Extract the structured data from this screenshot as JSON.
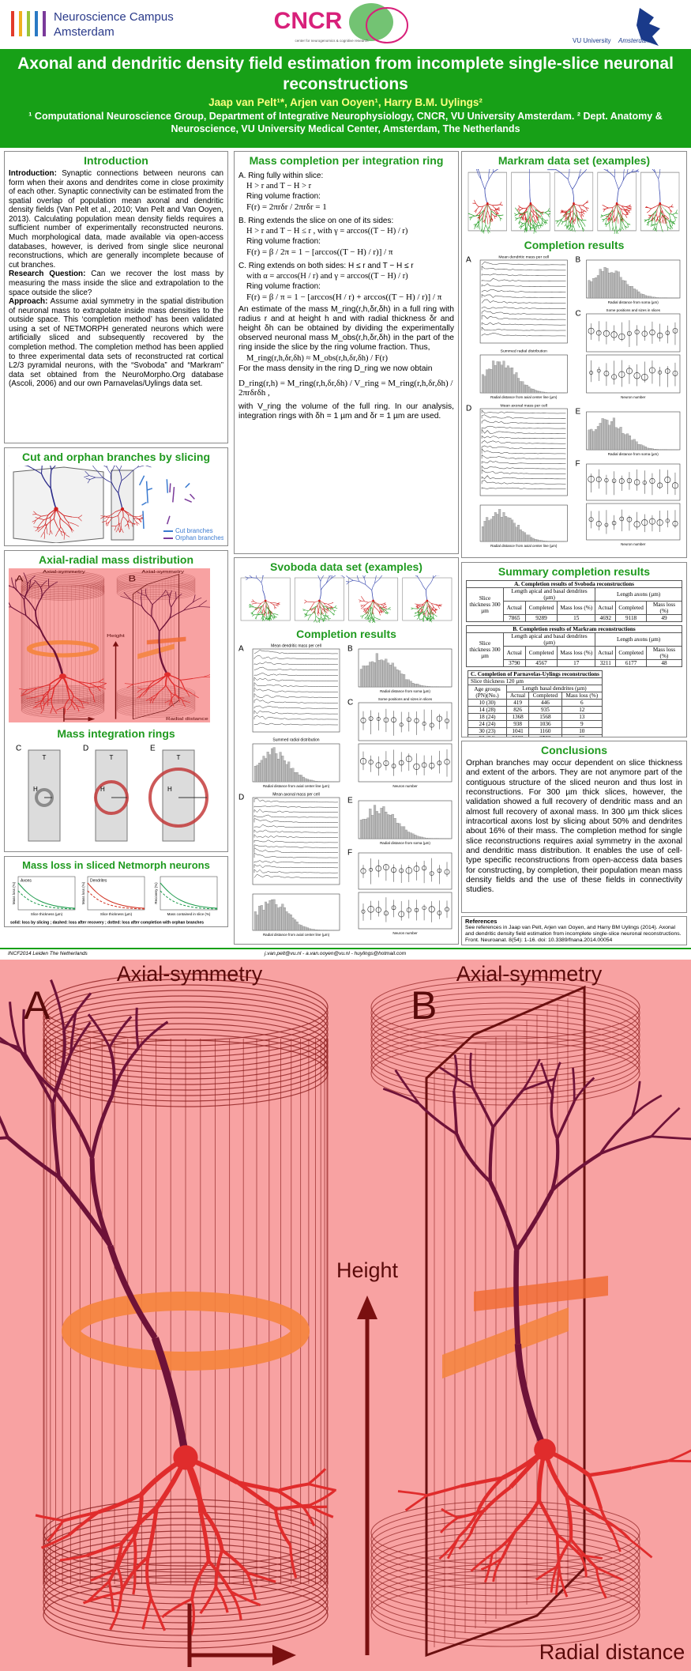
{
  "header": {
    "logo_left_line1": "Neuroscience Campus",
    "logo_left_line2": "Amsterdam",
    "logo_center": "CNCR",
    "logo_center_sub": "center for neurogenomics & cognitive research",
    "logo_right_1": "VU University",
    "logo_right_2": "Amsterdam"
  },
  "title": "Axonal and dendritic density field estimation from incomplete single-slice neuronal reconstructions",
  "authors": "Jaap van Pelt¹*, Arjen van Ooyen¹, Harry B.M. Uylings²",
  "affiliation": "¹ Computational Neuroscience Group, Department of Integrative Neurophysiology, CNCR, VU University Amsterdam. ² Dept. Anatomy & Neuroscience, VU University Medical Center, Amsterdam, The Netherlands",
  "introduction": {
    "title": "Introduction",
    "paragraphs": [
      {
        "lead": "Introduction:",
        "text": "Synaptic connections between neurons can form when their axons and dendrites come in close proximity of each other. Synaptic connectivity can be estimated from the spatial overlap of population mean axonal and dendritic density fields (Van Pelt et al., 2010; Van Pelt and Van Ooyen, 2013). Calculating population mean density fields requires a sufficient number of experimentally reconstructed neurons. Much morphological data, made available via open-access databases, however, is derived from single slice neuronal reconstructions, which are generally incomplete because of cut branches."
      },
      {
        "lead": "Research Question:",
        "text": "Can we recover the lost mass by measuring the mass inside the slice and extrapolation to the space outside the slice?"
      },
      {
        "lead": "Approach:",
        "text": "Assume axial symmetry in the spatial distribution of neuronal mass to extrapolate inside mass densities to the outside space. This ‘completion method’ has been validated using a set of NETMORPH generated neurons which were artificially sliced and subsequently recovered by the completion method. The completion method has been applied to three experimental data sets of reconstructed rat cortical L2/3 pyramidal neurons, with the “Svoboda” and “Markram” data set obtained from the NeuroMorpho.Org database (Ascoli, 2006) and our own Parnavelas/Uylings data set."
      }
    ]
  },
  "cut_orphan": {
    "title": "Cut and orphan branches by slicing",
    "legend": [
      "Cut branches",
      "Orphan branches"
    ]
  },
  "axial_radial": {
    "title": "Axial-radial mass distribution",
    "label_a": "A",
    "label_b": "B",
    "axial_symmetry": "Axial-symmetry",
    "height": "Height",
    "radial_distance": "Radial distance"
  },
  "rings": {
    "title": "Mass integration rings",
    "labels": [
      "C",
      "D",
      "E"
    ],
    "t": "T",
    "h": "H"
  },
  "mass_loss": {
    "title": "Mass loss in sliced Netmorph neurons",
    "panels": [
      "Axons",
      "Dendrites"
    ],
    "ylabel": "Mass loss (%)",
    "ylabel_recovery": "Recovery (%)",
    "xlabel": "Slice thickness (µm)",
    "xlabel_recovery": "Mass contained in slice (%)",
    "caption": "solid: loss by slicing ; dashed: loss after recovery ; dotted: loss after completion with orphan branches"
  },
  "mass_completion": {
    "title": "Mass completion per integration ring",
    "cases": [
      {
        "heading": "A. Ring fully within slice:",
        "condition": "H > r  and  T − H > r",
        "fraction_label": "Ring volume fraction:",
        "fraction": "F(r) = 2πrδr / 2πrδr = 1"
      },
      {
        "heading": "B. Ring extends the slice on one of its sides:",
        "condition": "H > r  and  T − H ≤ r , with  γ = arccos((T − H) / r)",
        "fraction_label": "Ring volume fraction:",
        "fraction": "F(r) = β / 2π = 1 − [arccos((T − H) / r)] / π"
      },
      {
        "heading": "C. Ring extends on both sides:  H ≤ r  and  T − H ≤ r",
        "condition": "with  α = arccos(H / r)  and  γ = arccos((T − H) / r)",
        "fraction_label": "Ring volume fraction:",
        "fraction": "F(r) = β / π = 1 − [arccos(H / r) + arccos((T − H) / r)] / π"
      }
    ],
    "estimate_text": "An estimate of the mass M_ring(r,h,δr,δh) in a full ring with radius r and at height h and with radial thickness δr and height δh can be obtained by dividing the experimentally observed neuronal mass M_obs(r,h,δr,δh) in the part of the ring inside the slice by the ring volume fraction. Thus,",
    "estimate_eq": "M_ring(r,h,δr,δh) ≈ M_obs(r,h,δr,δh) / F(r)",
    "density_text": "For the mass density in the ring D_ring we now obtain",
    "density_eq": "D_ring(r,h) = M_ring(r,h,δr,δh) / V_ring = M_ring(r,h,δr,δh) / 2πrδrδh ,",
    "closing": "with V_ring the volume of the full ring. In our analysis, integration rings with δh = 1 µm and δr = 1 µm are used."
  },
  "svoboda": {
    "title": "Svoboda data set (examples)",
    "results_title": "Completion results"
  },
  "markram": {
    "title": "Markram data set (examples)",
    "results_title": "Completion results"
  },
  "results_labels": {
    "panel_letters": [
      "A",
      "B",
      "C",
      "D",
      "E",
      "F"
    ],
    "mean_dendritic": "Mean dendritic mass per cell",
    "mean_axonal": "Mean axonal mass per cell",
    "summed": "Summed radial distribution",
    "positions": "Some positions and sizes in slices",
    "neuron_number": "Neuron number",
    "radial_soma": "Radial distance from soma (µm)",
    "radial_axis": "Radial distance from axial center line (µm)"
  },
  "summary": {
    "title": "Summary completion results",
    "section_a": "A. Completion results of Svoboda reconstructions",
    "section_b": "B. Completion results of Markram reconstructions",
    "section_c": "C. Completion of Parnavelas-Uylings reconstructions",
    "slice_300": "Slice thickness 300 µm",
    "slice_120": "Slice thickness 120 µm",
    "dendrites_header": "Length apical and basal dendrites (µm)",
    "axons_header": "Length axons (µm)",
    "basal_header": "Length basal dendrites (µm)",
    "age_header": "Age groups (PN)(No.)",
    "columns": [
      "Actual",
      "Completed",
      "Mass loss (%)"
    ],
    "svoboda_row": [
      "7865",
      "9289",
      "15",
      "4692",
      "9118",
      "49"
    ],
    "markram_row": [
      "3790",
      "4567",
      "17",
      "3211",
      "6177",
      "48"
    ],
    "parnavelas_rows": [
      [
        "10 (30)",
        "419",
        "446",
        "6"
      ],
      [
        "14 (28)",
        "826",
        "935",
        "12"
      ],
      [
        "18 (24)",
        "1368",
        "1568",
        "13"
      ],
      [
        "24 (24)",
        "938",
        "1036",
        "9"
      ],
      [
        "30 (23)",
        "1041",
        "1160",
        "10"
      ],
      [
        "90 (24)",
        "2022",
        "2532",
        "20"
      ]
    ]
  },
  "conclusions": {
    "title": "Conclusions",
    "text": "Orphan branches may occur dependent on slice thickness and extent of the arbors. They are not anymore part of the contiguous structure of the sliced neuron and thus lost in reconstructions. For 300 µm thick slices, however, the validation showed a full recovery of dendritic mass and an almost full recovery of axonal mass. In 300 µm thick slices intracortical axons lost by slicing about 50% and dendrites about 16% of their mass. The completion method for single slice reconstructions requires axial symmetry in the axonal and dendritic mass distribution. It enables the use of cell-type specific reconstructions from open-access data bases for constructing, by completion, their population mean mass density fields and the use of these fields in connectivity studies."
  },
  "references": {
    "title": "References",
    "text": "See references in Jaap van Pelt, Arjen van Ooyen, and Harry BM Uylings (2014). Axonal and dendritic density field estimation from incomplete single-slice neuronal reconstructions. Front. Neuroanat. 8(54): 1-16. doi: 10.3389/fnana.2014.00054"
  },
  "footer": {
    "left": "INCF2014 Leiden The Netherlands",
    "emails": "j.van.pelt@vu.nl  -  a.van.ooyen@vu.nl  -  huylings@hotmail.com"
  }
}
